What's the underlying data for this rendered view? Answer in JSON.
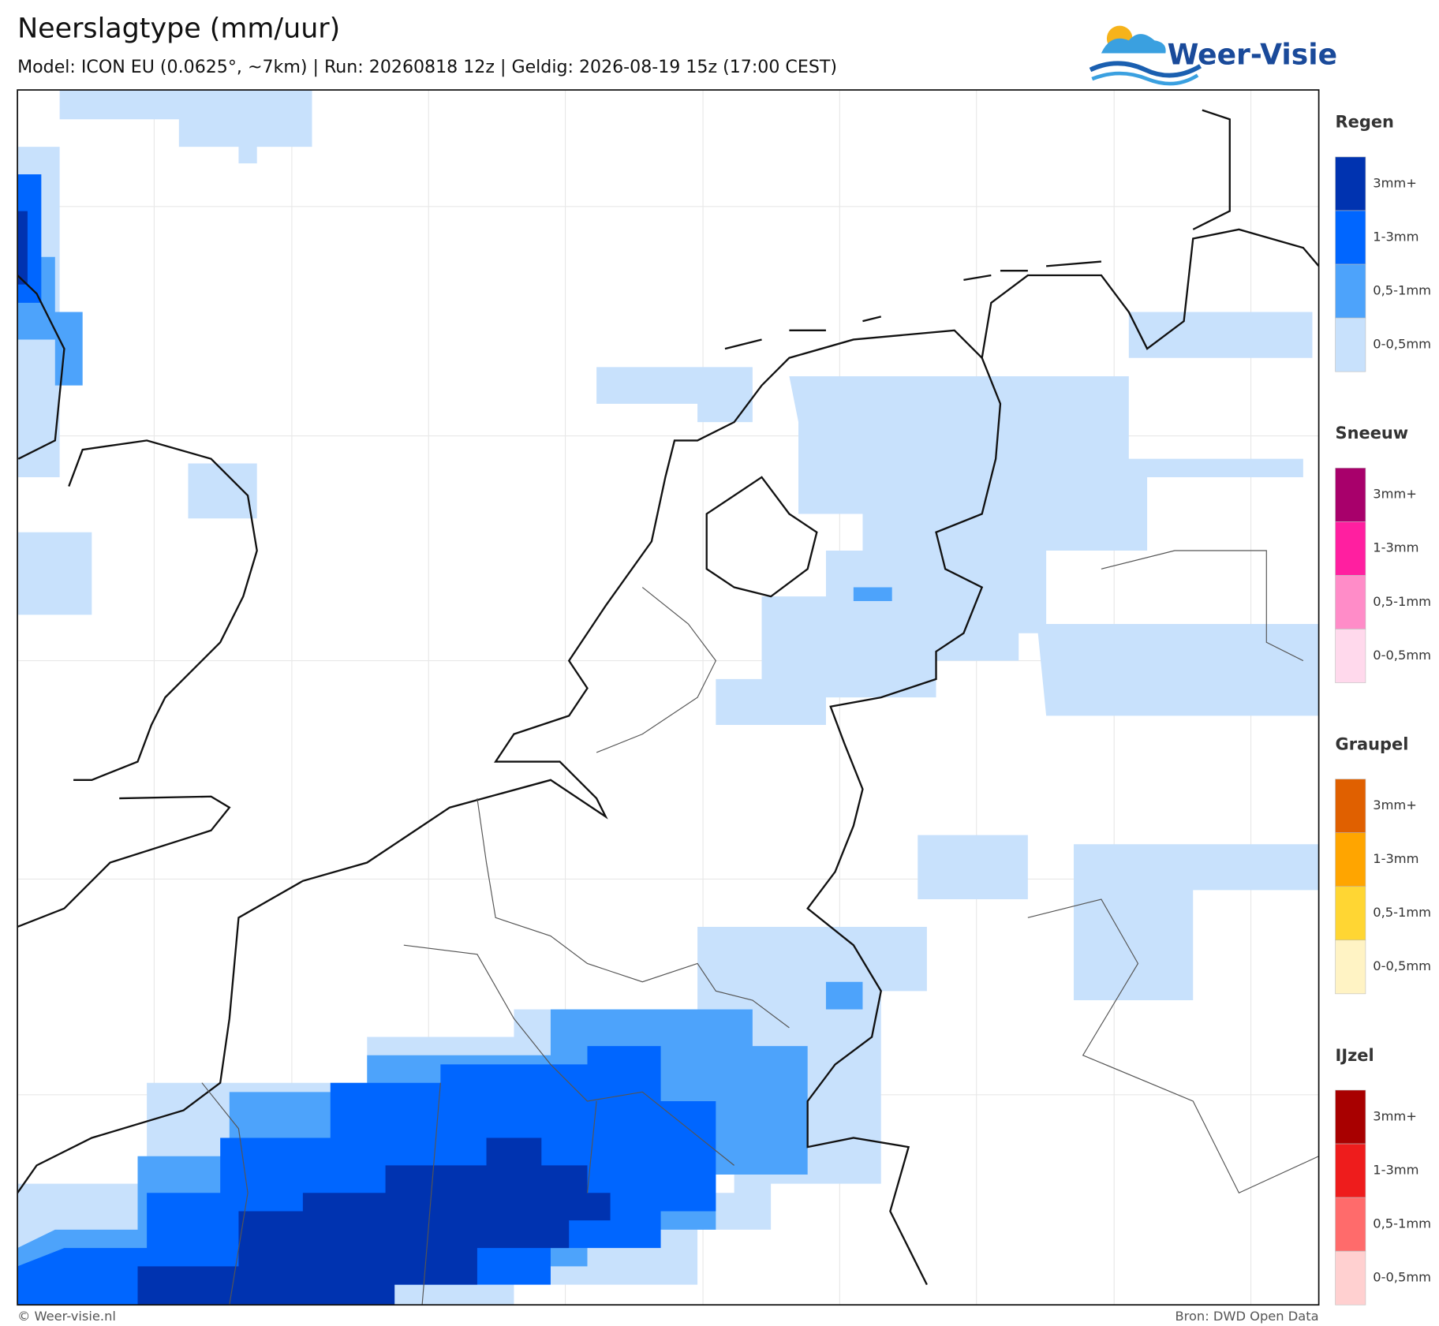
{
  "header": {
    "title": "Neerslagtype (mm/uur)",
    "subtitle": "Model: ICON EU (0.0625°, ~7km)  |  Run: 20260818 12z  |  Geldig: 2026-08-19 15z (17:00 CEST)",
    "logo": "Weer-Visie"
  },
  "legend": {
    "groups": [
      {
        "title": "Regen",
        "items": [
          {
            "label": "3mm+",
            "color": "#0033b0"
          },
          {
            "label": "1-3mm",
            "color": "#0066ff"
          },
          {
            "label": "0,5-1mm",
            "color": "#4da3fb"
          },
          {
            "label": "0-0,5mm",
            "color": "#c8e1fc"
          }
        ]
      },
      {
        "title": "Sneeuw",
        "items": [
          {
            "label": "3mm+",
            "color": "#a8006b"
          },
          {
            "label": "1-3mm",
            "color": "#ff1fa0"
          },
          {
            "label": "0,5-1mm",
            "color": "#ff8cc8"
          },
          {
            "label": "0-0,5mm",
            "color": "#ffd9ec"
          }
        ]
      },
      {
        "title": "Graupel",
        "items": [
          {
            "label": "3mm+",
            "color": "#e06000"
          },
          {
            "label": "1-3mm",
            "color": "#ffa500"
          },
          {
            "label": "0,5-1mm",
            "color": "#ffd633"
          },
          {
            "label": "0-0,5mm",
            "color": "#fff3c4"
          }
        ]
      },
      {
        "title": "IJzel",
        "items": [
          {
            "label": "3mm+",
            "color": "#a80000"
          },
          {
            "label": "1-3mm",
            "color": "#ee1c1c"
          },
          {
            "label": "0,5-1mm",
            "color": "#ff6b6b"
          },
          {
            "label": "0-0,5mm",
            "color": "#ffd0d0"
          }
        ]
      }
    ]
  },
  "footer": {
    "left": "© Weer-visie.nl",
    "right": "Bron: DWD Open Data"
  }
}
